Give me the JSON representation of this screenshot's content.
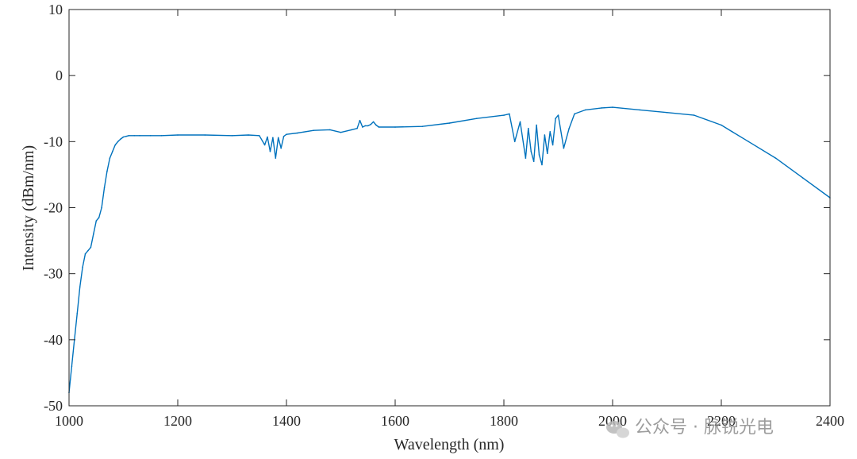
{
  "chart_data": {
    "type": "line",
    "title": "",
    "xlabel": "Wavelength (nm)",
    "ylabel": "Intensity (dBm/nm)",
    "xlim": [
      1000,
      2400
    ],
    "ylim": [
      -50,
      10
    ],
    "x_ticks": [
      1000,
      1200,
      1400,
      1600,
      1800,
      2000,
      2200,
      2400
    ],
    "y_ticks": [
      10,
      0,
      -10,
      -20,
      -30,
      -40,
      -50
    ],
    "grid": false,
    "legend": "none",
    "series": [
      {
        "color": "#0072BD",
        "x": [
          1000,
          1005,
          1010,
          1015,
          1020,
          1025,
          1030,
          1035,
          1040,
          1045,
          1050,
          1055,
          1060,
          1065,
          1070,
          1075,
          1080,
          1085,
          1090,
          1095,
          1100,
          1105,
          1110,
          1120,
          1130,
          1150,
          1170,
          1200,
          1250,
          1300,
          1330,
          1350,
          1360,
          1365,
          1370,
          1375,
          1380,
          1385,
          1390,
          1395,
          1400,
          1420,
          1450,
          1480,
          1500,
          1520,
          1530,
          1535,
          1540,
          1545,
          1550,
          1555,
          1560,
          1565,
          1570,
          1600,
          1650,
          1700,
          1750,
          1800,
          1810,
          1820,
          1830,
          1840,
          1845,
          1850,
          1855,
          1860,
          1865,
          1870,
          1875,
          1880,
          1885,
          1890,
          1895,
          1900,
          1910,
          1920,
          1930,
          1950,
          1980,
          2000,
          2050,
          2100,
          2150,
          2200,
          2220,
          2250,
          2300,
          2350,
          2400
        ],
        "values": [
          -48,
          -44,
          -40,
          -36,
          -32,
          -29,
          -27,
          -26.5,
          -26,
          -24,
          -22,
          -21.5,
          -20,
          -17,
          -14.5,
          -12.5,
          -11.5,
          -10.5,
          -10,
          -9.6,
          -9.3,
          -9.2,
          -9.1,
          -9.1,
          -9.1,
          -9.1,
          -9.1,
          -9.0,
          -9.0,
          -9.1,
          -9.0,
          -9.1,
          -10.5,
          -9.3,
          -11.5,
          -9.4,
          -12.5,
          -9.4,
          -11,
          -9.2,
          -8.9,
          -8.7,
          -8.3,
          -8.2,
          -8.6,
          -8.2,
          -8.0,
          -6.8,
          -7.8,
          -7.6,
          -7.6,
          -7.4,
          -7.0,
          -7.5,
          -7.8,
          -7.8,
          -7.7,
          -7.2,
          -6.5,
          -6.0,
          -5.8,
          -10,
          -7,
          -12.5,
          -8,
          -11.5,
          -13,
          -7.5,
          -12,
          -13.5,
          -9,
          -11.8,
          -8.5,
          -10.5,
          -6.5,
          -6,
          -11,
          -8,
          -5.8,
          -5.2,
          -4.9,
          -4.8,
          -5.2,
          -5.6,
          -6.0,
          -7.5,
          -8.5,
          -10,
          -12.5,
          -15.5,
          -18.5
        ]
      }
    ]
  },
  "watermark": {
    "text": "公众号 · 脉锐光电"
  }
}
